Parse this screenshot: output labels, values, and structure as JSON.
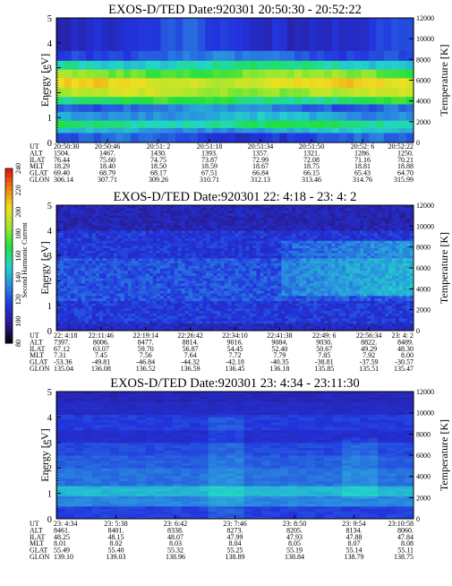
{
  "chart_data": [
    {
      "type": "heatmap",
      "title": "EXOS-D/TED   Date:920301  20:50:30 - 20:52:22",
      "ylabel": "Energy [eV]",
      "ylabel_right": "Temperature [K]",
      "ylim": [
        0,
        5
      ],
      "ylim_right": [
        0,
        12000
      ],
      "yticks": [
        "0",
        "1",
        "2",
        "3",
        "4",
        "5"
      ],
      "yticks_right": [
        "0",
        "2000",
        "4000",
        "6000",
        "8000",
        "10000",
        "12000"
      ],
      "ephemeris_labels": [
        "UT",
        "ALT",
        "ILAT",
        "MLT",
        "GLAT",
        "GLON"
      ],
      "ephemeris_columns": [
        [
          "20:50:30",
          "1504.",
          "76.44",
          "18.29",
          "69.40",
          "306.14"
        ],
        [
          "20:50:46",
          "1467.",
          "75.60",
          "18.40",
          "68.79",
          "307.71"
        ],
        [
          "20:51: 2",
          "1430.",
          "74.75",
          "18.50",
          "68.17",
          "309.26"
        ],
        [
          "20:51:18",
          "1393.",
          "73.87",
          "18.59",
          "67.51",
          "310.71"
        ],
        [
          "20:51:34",
          "1357.",
          "72.99",
          "18.67",
          "66.84",
          "312.13"
        ],
        [
          "20:51:50",
          "1321.",
          "72.08",
          "18.75",
          "66.15",
          "313.46"
        ],
        [
          "20:52: 6",
          "1286.",
          "71.16",
          "18.81",
          "65.43",
          "314.76"
        ],
        [
          "20:52:22",
          "1250.",
          "70.21",
          "18.88",
          "64.70",
          "315.99"
        ]
      ],
      "energy_bands": [
        {
          "from": 0.0,
          "to": 0.4,
          "level": 120
        },
        {
          "from": 0.4,
          "to": 0.6,
          "level": 140
        },
        {
          "from": 0.6,
          "to": 0.9,
          "level": 160
        },
        {
          "from": 0.9,
          "to": 1.25,
          "level": 140
        },
        {
          "from": 1.25,
          "to": 1.55,
          "level": 130
        },
        {
          "from": 1.55,
          "to": 1.85,
          "level": 165
        },
        {
          "from": 1.85,
          "to": 2.2,
          "level": 190
        },
        {
          "from": 2.2,
          "to": 2.6,
          "level": 200
        },
        {
          "from": 2.6,
          "to": 2.95,
          "level": 180
        },
        {
          "from": 2.95,
          "to": 3.3,
          "level": 155
        },
        {
          "from": 3.3,
          "to": 3.7,
          "level": 125
        },
        {
          "from": 3.7,
          "to": 5.0,
          "level": 115
        }
      ]
    },
    {
      "type": "heatmap",
      "title": "EXOS-D/TED   Date:920301  22: 4:18 - 23: 4: 2",
      "ylabel": "Energy [eV]",
      "ylabel_right": "Temperature [K]",
      "ylim": [
        0,
        5
      ],
      "ylim_right": [
        0,
        12000
      ],
      "yticks": [
        "0",
        "1",
        "2",
        "3",
        "4",
        "5"
      ],
      "yticks_right": [
        "0",
        "2000",
        "4000",
        "6000",
        "8000",
        "10000",
        "12000"
      ],
      "ephemeris_labels": [
        "UT",
        "ALT",
        "ILAT",
        "MLT",
        "GLAT",
        "GLON"
      ],
      "ephemeris_columns": [
        [
          "22: 4:18",
          "7397.",
          "67.12",
          "7.31",
          "-53.36",
          "135.04"
        ],
        [
          "22:11:46",
          "8006.",
          "63.07",
          "7.45",
          "-49.81",
          "136.08"
        ],
        [
          "22:19:14",
          "8477.",
          "59.70",
          "7.56",
          "-46.84",
          "136.52"
        ],
        [
          "22:26:42",
          "8814.",
          "56.87",
          "7.64",
          "-44.32",
          "136.59"
        ],
        [
          "22:34:10",
          "9016.",
          "54.45",
          "7.72",
          "-42.18",
          "136.45"
        ],
        [
          "22:41:38",
          "9084.",
          "52.40",
          "7.79",
          "-40.35",
          "136.18"
        ],
        [
          "22:49: 6",
          "9030.",
          "50.67",
          "7.85",
          "-38.81",
          "135.85"
        ],
        [
          "22:56:34",
          "8822.",
          "49.29",
          "7.92",
          "-37.59",
          "135.51"
        ],
        [
          "23: 4: 2",
          "8489.",
          "48.30",
          "8.00",
          "-30.57",
          "135.47"
        ]
      ]
    },
    {
      "type": "heatmap",
      "title": "EXOS-D/TED   Date:920301  23: 4:34 - 23:11:30",
      "ylabel": "Energy [eV]",
      "ylabel_right": "Temperature [K]",
      "ylim": [
        0,
        5
      ],
      "ylim_right": [
        0,
        12000
      ],
      "yticks": [
        "0",
        "1",
        "2",
        "3",
        "4",
        "5"
      ],
      "yticks_right": [
        "0",
        "2000",
        "4000",
        "6000",
        "8000",
        "10000",
        "12000"
      ],
      "ephemeris_labels": [
        "UT",
        "ALT",
        "ILAT",
        "MLT",
        "GLAT",
        "GLON"
      ],
      "ephemeris_columns": [
        [
          "23: 4:34",
          "8461.",
          "48.25",
          "8.01",
          "55.49",
          "139.10"
        ],
        [
          "23: 5:38",
          "8401.",
          "48.15",
          "8.02",
          "55.40",
          "139.03"
        ],
        [
          "23: 6:42",
          "8338.",
          "48.07",
          "8.03",
          "55.32",
          "138.96"
        ],
        [
          "23: 7:46",
          "8273.",
          "47.99",
          "8.04",
          "55.25",
          "138.89"
        ],
        [
          "23: 8:50",
          "8205.",
          "47.93",
          "8.05",
          "55.19",
          "138.84"
        ],
        [
          "23: 9:54",
          "8134.",
          "47.88",
          "8.07",
          "55.14",
          "138.79"
        ],
        [
          "23:10:58",
          "8060.",
          "47.84",
          "8.08",
          "55.11",
          "138.75"
        ]
      ]
    }
  ],
  "colorbar": {
    "label": "Second Harmonic Current",
    "ticks": [
      "80",
      "100",
      "120",
      "140",
      "160",
      "180",
      "200",
      "220",
      "240"
    ],
    "range": [
      80,
      240
    ],
    "stops": [
      "#000000",
      "#2a1a8c",
      "#2233dd",
      "#2a8ce0",
      "#22d6c8",
      "#20e040",
      "#a0e830",
      "#f0e020",
      "#f08010",
      "#e01010"
    ]
  }
}
